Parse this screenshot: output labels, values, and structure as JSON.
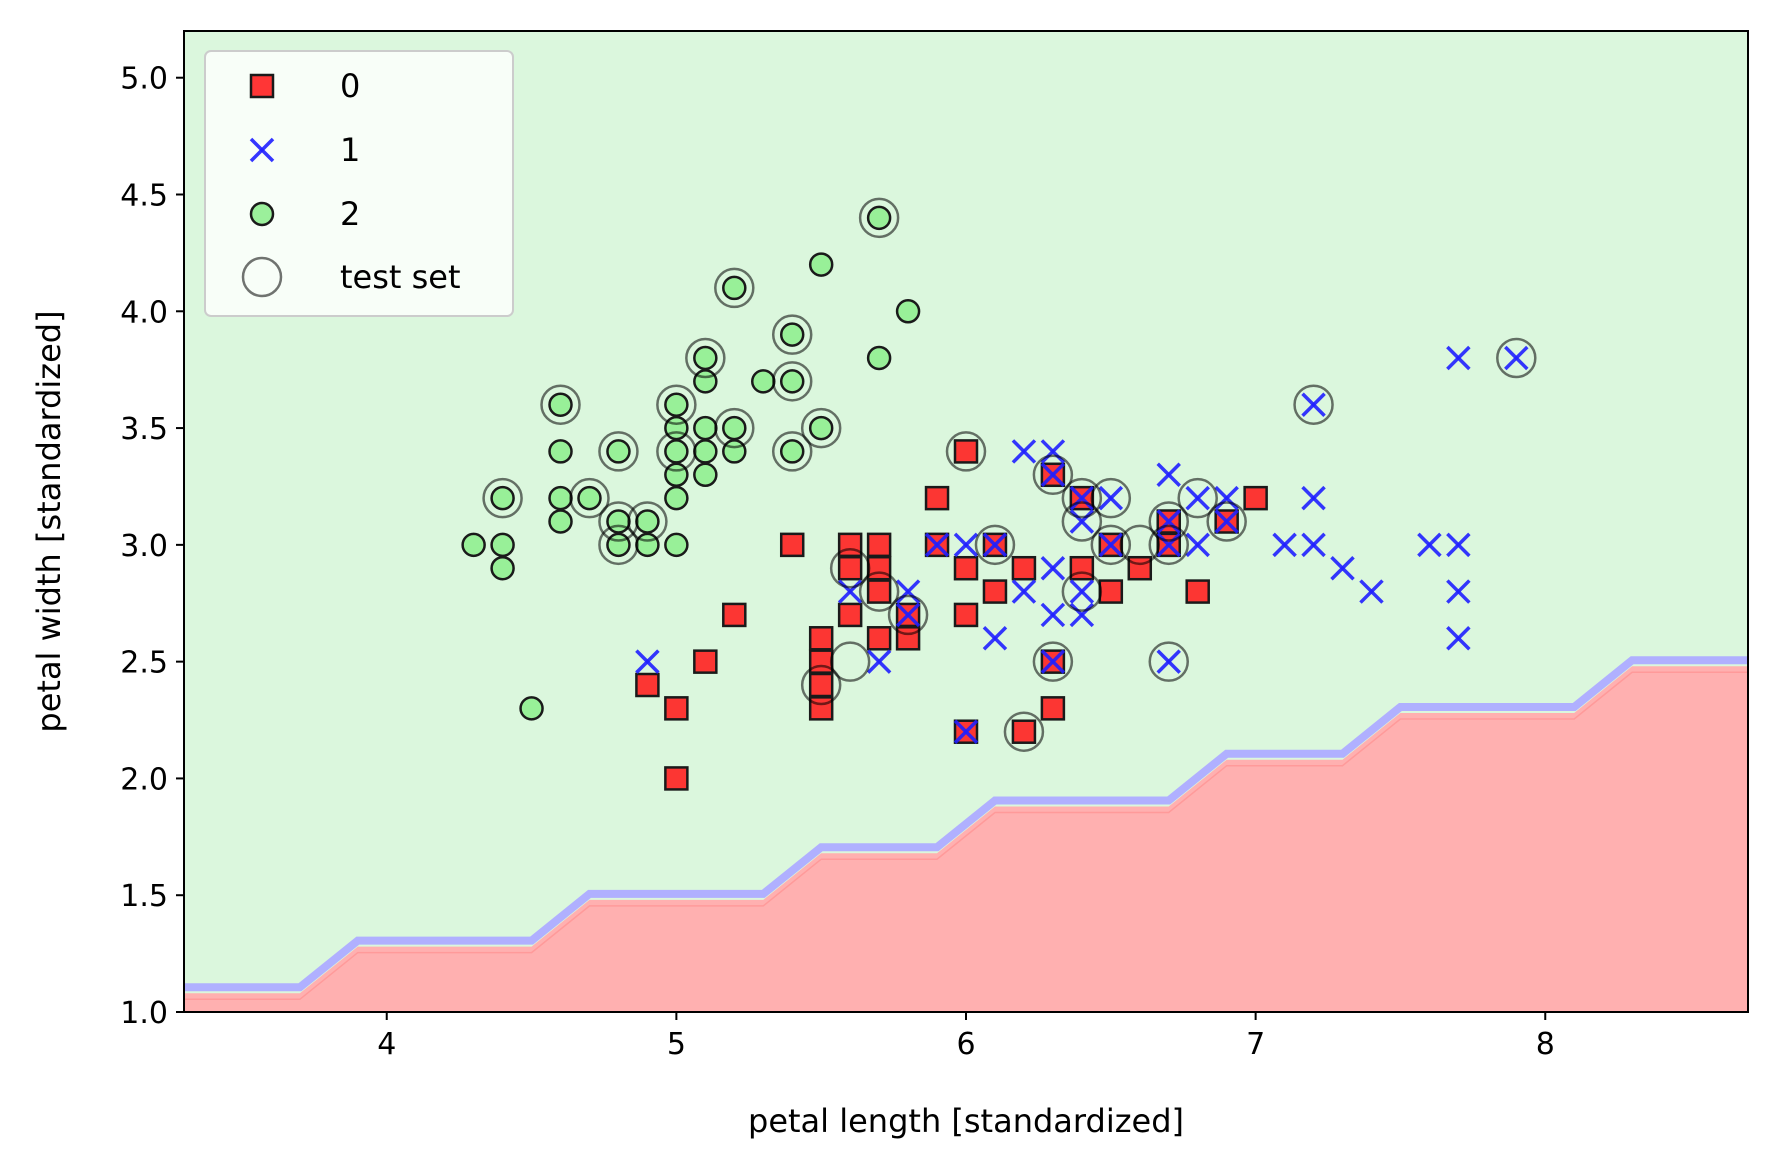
{
  "chart_data": {
    "type": "scatter",
    "title": "",
    "xlabel": "petal length [standardized]",
    "ylabel": "petal width [standardized]",
    "xlim": [
      3.3,
      8.7
    ],
    "ylim": [
      1.0,
      5.2
    ],
    "xticks": [
      "4",
      "5",
      "6",
      "7",
      "8"
    ],
    "xtick_values": [
      4,
      5,
      6,
      7,
      8
    ],
    "yticks": [
      "1.0",
      "1.5",
      "2.0",
      "2.5",
      "3.0",
      "3.5",
      "4.0",
      "4.5",
      "5.0"
    ],
    "ytick_values": [
      1.0,
      1.5,
      2.0,
      2.5,
      3.0,
      3.5,
      4.0,
      4.5,
      5.0
    ],
    "grid": false,
    "legend_position": "upper-left",
    "colors": {
      "class0": "#ff2020",
      "class1": "#1f1fff",
      "class2": "#90ee90",
      "region_red": "#ffb0b0",
      "region_green": "#dbf7dd",
      "boundary_blue": "#b0b0ff",
      "test_ring": "#707070"
    },
    "decision_boundary": {
      "x": [
        3.3,
        3.7,
        3.9,
        4.5,
        4.7,
        5.3,
        5.5,
        5.9,
        6.1,
        6.7,
        6.9,
        7.3,
        7.5,
        8.1,
        8.3,
        8.7
      ],
      "y": [
        1.08,
        1.08,
        1.28,
        1.28,
        1.48,
        1.48,
        1.68,
        1.68,
        1.88,
        1.88,
        2.08,
        2.08,
        2.28,
        2.28,
        2.48,
        2.48
      ]
    },
    "series": [
      {
        "name": "0",
        "marker": "square",
        "points": [
          [
            6.0,
            3.4
          ],
          [
            5.9,
            3.2
          ],
          [
            6.3,
            3.3
          ],
          [
            6.4,
            3.2
          ],
          [
            7.0,
            3.2
          ],
          [
            6.9,
            3.1
          ],
          [
            6.7,
            3.1
          ],
          [
            5.4,
            3.0
          ],
          [
            5.6,
            3.0
          ],
          [
            5.7,
            3.0
          ],
          [
            5.9,
            3.0
          ],
          [
            6.1,
            3.0
          ],
          [
            6.7,
            3.0
          ],
          [
            6.5,
            3.0
          ],
          [
            6.6,
            2.9
          ],
          [
            5.6,
            2.9
          ],
          [
            5.7,
            2.9
          ],
          [
            6.0,
            2.9
          ],
          [
            6.2,
            2.9
          ],
          [
            6.4,
            2.9
          ],
          [
            6.1,
            2.8
          ],
          [
            5.7,
            2.8
          ],
          [
            6.5,
            2.8
          ],
          [
            6.8,
            2.8
          ],
          [
            5.8,
            2.7
          ],
          [
            5.2,
            2.7
          ],
          [
            5.6,
            2.7
          ],
          [
            6.0,
            2.7
          ],
          [
            5.7,
            2.6
          ],
          [
            5.8,
            2.6
          ],
          [
            5.5,
            2.6
          ],
          [
            5.1,
            2.5
          ],
          [
            5.5,
            2.5
          ],
          [
            6.3,
            2.5
          ],
          [
            4.9,
            2.4
          ],
          [
            5.5,
            2.4
          ],
          [
            5.0,
            2.3
          ],
          [
            5.5,
            2.3
          ],
          [
            6.3,
            2.3
          ],
          [
            6.0,
            2.2
          ],
          [
            6.2,
            2.2
          ],
          [
            5.0,
            2.0
          ]
        ]
      },
      {
        "name": "1",
        "marker": "x",
        "points": [
          [
            7.7,
            3.8
          ],
          [
            7.9,
            3.8
          ],
          [
            7.2,
            3.6
          ],
          [
            6.2,
            3.4
          ],
          [
            6.3,
            3.4
          ],
          [
            6.3,
            3.3
          ],
          [
            6.7,
            3.3
          ],
          [
            6.4,
            3.2
          ],
          [
            6.5,
            3.2
          ],
          [
            6.8,
            3.2
          ],
          [
            6.9,
            3.2
          ],
          [
            7.2,
            3.2
          ],
          [
            6.4,
            3.1
          ],
          [
            6.9,
            3.1
          ],
          [
            6.7,
            3.1
          ],
          [
            5.9,
            3.0
          ],
          [
            6.0,
            3.0
          ],
          [
            6.1,
            3.0
          ],
          [
            6.5,
            3.0
          ],
          [
            6.7,
            3.0
          ],
          [
            6.8,
            3.0
          ],
          [
            7.1,
            3.0
          ],
          [
            7.2,
            3.0
          ],
          [
            7.6,
            3.0
          ],
          [
            7.7,
            3.0
          ],
          [
            6.3,
            2.9
          ],
          [
            7.3,
            2.9
          ],
          [
            5.6,
            2.8
          ],
          [
            5.8,
            2.8
          ],
          [
            6.2,
            2.8
          ],
          [
            6.4,
            2.8
          ],
          [
            7.4,
            2.8
          ],
          [
            7.7,
            2.8
          ],
          [
            5.8,
            2.7
          ],
          [
            6.3,
            2.7
          ],
          [
            6.4,
            2.7
          ],
          [
            6.1,
            2.6
          ],
          [
            7.7,
            2.6
          ],
          [
            4.9,
            2.5
          ],
          [
            5.7,
            2.5
          ],
          [
            6.3,
            2.5
          ],
          [
            6.7,
            2.5
          ],
          [
            6.0,
            2.2
          ]
        ]
      },
      {
        "name": "2",
        "marker": "circle",
        "points": [
          [
            5.7,
            4.4
          ],
          [
            5.5,
            4.2
          ],
          [
            5.2,
            4.1
          ],
          [
            5.8,
            4.0
          ],
          [
            5.4,
            3.9
          ],
          [
            5.1,
            3.8
          ],
          [
            5.7,
            3.8
          ],
          [
            5.1,
            3.7
          ],
          [
            5.3,
            3.7
          ],
          [
            5.4,
            3.7
          ],
          [
            4.6,
            3.6
          ],
          [
            5.0,
            3.6
          ],
          [
            5.0,
            3.5
          ],
          [
            5.1,
            3.5
          ],
          [
            5.2,
            3.5
          ],
          [
            5.5,
            3.5
          ],
          [
            4.6,
            3.4
          ],
          [
            4.8,
            3.4
          ],
          [
            5.0,
            3.4
          ],
          [
            5.1,
            3.4
          ],
          [
            5.2,
            3.4
          ],
          [
            5.4,
            3.4
          ],
          [
            5.0,
            3.3
          ],
          [
            5.1,
            3.3
          ],
          [
            4.4,
            3.2
          ],
          [
            4.6,
            3.2
          ],
          [
            4.7,
            3.2
          ],
          [
            5.0,
            3.2
          ],
          [
            4.6,
            3.1
          ],
          [
            4.8,
            3.1
          ],
          [
            4.9,
            3.1
          ],
          [
            4.3,
            3.0
          ],
          [
            4.4,
            3.0
          ],
          [
            4.8,
            3.0
          ],
          [
            4.9,
            3.0
          ],
          [
            5.0,
            3.0
          ],
          [
            4.4,
            2.9
          ],
          [
            4.5,
            2.3
          ]
        ]
      }
    ],
    "test_set": {
      "name": "test set",
      "points": [
        [
          5.7,
          4.4
        ],
        [
          5.2,
          4.1
        ],
        [
          5.4,
          3.9
        ],
        [
          5.1,
          3.8
        ],
        [
          5.4,
          3.7
        ],
        [
          4.6,
          3.6
        ],
        [
          5.0,
          3.6
        ],
        [
          5.2,
          3.5
        ],
        [
          5.5,
          3.5
        ],
        [
          4.8,
          3.4
        ],
        [
          5.0,
          3.4
        ],
        [
          5.4,
          3.4
        ],
        [
          4.4,
          3.2
        ],
        [
          4.7,
          3.2
        ],
        [
          4.8,
          3.1
        ],
        [
          4.9,
          3.1
        ],
        [
          4.8,
          3.0
        ],
        [
          6.0,
          3.4
        ],
        [
          6.3,
          3.3
        ],
        [
          6.4,
          3.2
        ],
        [
          6.5,
          3.2
        ],
        [
          6.4,
          3.1
        ],
        [
          6.7,
          3.1
        ],
        [
          6.8,
          3.2
        ],
        [
          6.9,
          3.1
        ],
        [
          6.1,
          3.0
        ],
        [
          6.5,
          3.0
        ],
        [
          6.6,
          3.0
        ],
        [
          6.7,
          3.0
        ],
        [
          5.6,
          2.9
        ],
        [
          5.7,
          2.8
        ],
        [
          5.8,
          2.7
        ],
        [
          6.4,
          2.8
        ],
        [
          5.6,
          2.5
        ],
        [
          5.5,
          2.4
        ],
        [
          6.3,
          2.5
        ],
        [
          6.7,
          2.5
        ],
        [
          6.2,
          2.2
        ],
        [
          7.2,
          3.6
        ],
        [
          7.9,
          3.8
        ]
      ]
    }
  }
}
